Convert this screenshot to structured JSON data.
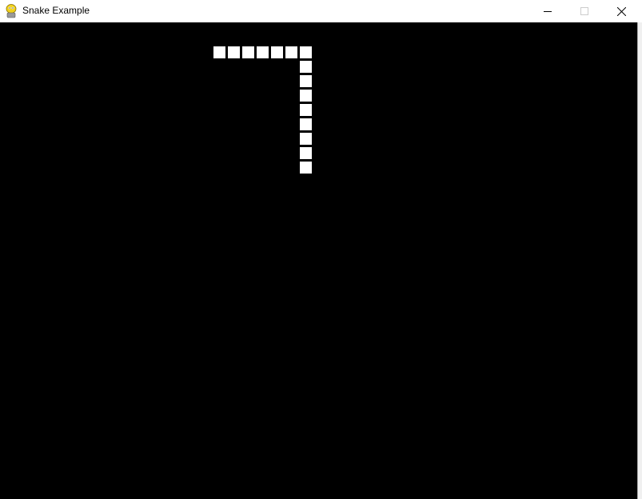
{
  "window": {
    "title": "Snake Example",
    "icon": "pygame-snake-icon",
    "controls": [
      "minimize-icon",
      "maximize-icon",
      "close-icon"
    ]
  },
  "game": {
    "background_color": "#000000",
    "snake_color": "#ffffff",
    "snake_cells": [
      [
        0,
        0
      ],
      [
        1,
        0
      ],
      [
        2,
        0
      ],
      [
        3,
        0
      ],
      [
        4,
        0
      ],
      [
        5,
        0
      ],
      [
        6,
        0
      ],
      [
        6,
        1
      ],
      [
        6,
        2
      ],
      [
        6,
        3
      ],
      [
        6,
        4
      ],
      [
        6,
        5
      ],
      [
        6,
        6
      ],
      [
        6,
        7
      ],
      [
        6,
        8
      ]
    ]
  }
}
